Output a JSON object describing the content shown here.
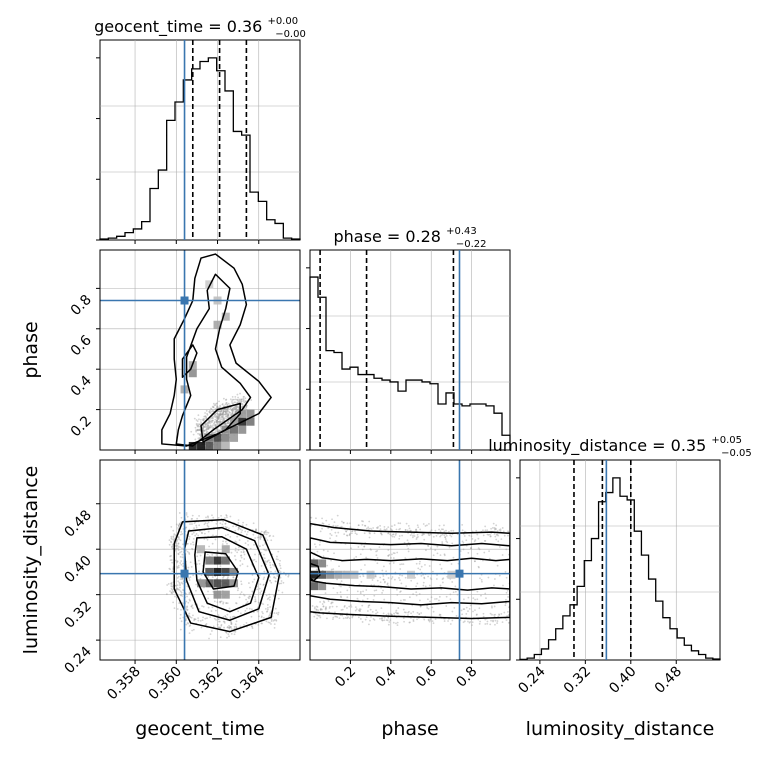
{
  "chart_data": {
    "type": "corner",
    "parameters": [
      "geocent_time",
      "phase",
      "luminosity_distance"
    ],
    "colors": {
      "truth": "#3a76af",
      "hist": "#000000",
      "grid": "#b0b0b0",
      "scatter": "#9e9e9e"
    },
    "geocent_time": {
      "title_main": "geocent_time = 0.36",
      "title_sup": "+0.00",
      "title_sub": "−0.00",
      "xlabel": "geocent_time",
      "range": [
        0.3563,
        0.366
      ],
      "ticks": [
        0.358,
        0.36,
        0.362,
        0.364
      ],
      "tick_labels": [
        "0.358",
        "0.360",
        "0.362",
        "0.364"
      ],
      "truth": 0.3604,
      "quantiles": [
        0.3608,
        0.3621,
        0.3634
      ],
      "hist": [
        0.005,
        0.01,
        0.02,
        0.04,
        0.06,
        0.1,
        0.28,
        0.38,
        0.65,
        0.75,
        0.87,
        0.93,
        0.97,
        0.99,
        0.92,
        0.81,
        0.59,
        0.57,
        0.26,
        0.21,
        0.11,
        0.09,
        0.01,
        0.005
      ]
    },
    "phase": {
      "title_main": "phase = 0.28",
      "title_sup": "+0.43",
      "title_sub": "−0.22",
      "xlabel": "phase",
      "ylabel": "phase",
      "range": [
        0.0,
        0.99
      ],
      "ticks": [
        0.2,
        0.4,
        0.6,
        0.8
      ],
      "tick_labels": [
        "0.2",
        "0.4",
        "0.6",
        "0.8"
      ],
      "truth": 0.74,
      "quantiles": [
        0.05,
        0.28,
        0.71
      ],
      "hist": [
        0.94,
        0.83,
        0.54,
        0.53,
        0.44,
        0.45,
        0.41,
        0.41,
        0.39,
        0.38,
        0.37,
        0.32,
        0.38,
        0.38,
        0.37,
        0.36,
        0.25,
        0.31,
        0.25,
        0.24,
        0.25,
        0.25,
        0.24,
        0.2,
        0.08
      ]
    },
    "luminosity_distance": {
      "title_main": "luminosity_distance = 0.35",
      "title_sup": "+0.05",
      "title_sub": "−0.05",
      "xlabel": "luminosity_distance",
      "ylabel": "luminosity_distance",
      "range": [
        0.205,
        0.557
      ],
      "ticks": [
        0.24,
        0.32,
        0.4,
        0.48
      ],
      "tick_labels": [
        "0.24",
        "0.32",
        "0.40",
        "0.48"
      ],
      "truth": 0.357,
      "quantiles": [
        0.3,
        0.35,
        0.4
      ],
      "hist": [
        0.003,
        0.01,
        0.03,
        0.06,
        0.11,
        0.17,
        0.24,
        0.3,
        0.4,
        0.54,
        0.66,
        0.86,
        0.91,
        0.99,
        0.89,
        0.87,
        0.7,
        0.57,
        0.44,
        0.32,
        0.23,
        0.17,
        0.12,
        0.08,
        0.05,
        0.03,
        0.01,
        0.005
      ]
    },
    "pairs": [
      {
        "x": "geocent_time",
        "y": "phase",
        "contours": [
          [
            [
              0.3608,
              0.02
            ],
            [
              0.3618,
              0.1
            ],
            [
              0.3632,
              0.2
            ],
            [
              0.3636,
              0.26
            ],
            [
              0.3631,
              0.33
            ],
            [
              0.3622,
              0.41
            ],
            [
              0.3619,
              0.5
            ],
            [
              0.3621,
              0.6
            ],
            [
              0.3624,
              0.7
            ],
            [
              0.3626,
              0.8
            ],
            [
              0.3619,
              0.87
            ],
            [
              0.3615,
              0.79
            ],
            [
              0.3616,
              0.7
            ],
            [
              0.361,
              0.6
            ],
            [
              0.3605,
              0.46
            ],
            [
              0.3605,
              0.35
            ],
            [
              0.3607,
              0.27
            ],
            [
              0.3603,
              0.17
            ],
            [
              0.3601,
              0.1
            ],
            [
              0.36,
              0.03
            ]
          ],
          [
            [
              0.3605,
              0.02
            ],
            [
              0.362,
              0.08
            ],
            [
              0.364,
              0.18
            ],
            [
              0.3646,
              0.26
            ],
            [
              0.364,
              0.34
            ],
            [
              0.3629,
              0.43
            ],
            [
              0.3626,
              0.52
            ],
            [
              0.3631,
              0.62
            ],
            [
              0.3634,
              0.72
            ],
            [
              0.3632,
              0.82
            ],
            [
              0.3628,
              0.9
            ],
            [
              0.3619,
              0.97
            ],
            [
              0.3612,
              0.95
            ],
            [
              0.3609,
              0.85
            ],
            [
              0.3608,
              0.74
            ],
            [
              0.3604,
              0.65
            ],
            [
              0.3599,
              0.55
            ],
            [
              0.3599,
              0.45
            ],
            [
              0.36,
              0.35
            ],
            [
              0.3599,
              0.27
            ],
            [
              0.3597,
              0.18
            ],
            [
              0.3593,
              0.1
            ],
            [
              0.3593,
              0.03
            ]
          ],
          [
            [
              0.3613,
              0.04
            ],
            [
              0.3624,
              0.1
            ],
            [
              0.3631,
              0.18
            ],
            [
              0.3631,
              0.23
            ],
            [
              0.362,
              0.2
            ],
            [
              0.3612,
              0.12
            ]
          ],
          [
            [
              0.3603,
              0.36
            ],
            [
              0.3607,
              0.4
            ],
            [
              0.361,
              0.48
            ],
            [
              0.3608,
              0.52
            ],
            [
              0.3603,
              0.45
            ]
          ]
        ],
        "density": [
          [
            0.3608,
            0.02,
            0.9
          ],
          [
            0.3612,
            0.02,
            0.95
          ],
          [
            0.3616,
            0.02,
            0.7
          ],
          [
            0.362,
            0.02,
            0.5
          ],
          [
            0.3624,
            0.02,
            0.3
          ],
          [
            0.3616,
            0.06,
            0.55
          ],
          [
            0.362,
            0.06,
            0.75
          ],
          [
            0.3624,
            0.06,
            0.5
          ],
          [
            0.3628,
            0.06,
            0.4
          ],
          [
            0.3624,
            0.1,
            0.45
          ],
          [
            0.3628,
            0.1,
            0.6
          ],
          [
            0.3632,
            0.1,
            0.45
          ],
          [
            0.3628,
            0.14,
            0.4
          ],
          [
            0.3632,
            0.14,
            0.85
          ],
          [
            0.3636,
            0.14,
            0.55
          ],
          [
            0.3632,
            0.18,
            0.4
          ],
          [
            0.3636,
            0.18,
            0.45
          ],
          [
            0.3604,
            0.3,
            0.35
          ],
          [
            0.3608,
            0.38,
            0.45
          ],
          [
            0.3608,
            0.42,
            0.35
          ],
          [
            0.362,
            0.62,
            0.35
          ],
          [
            0.3624,
            0.66,
            0.3
          ],
          [
            0.362,
            0.74,
            0.25
          ],
          [
            0.3616,
            0.82,
            0.2
          ]
        ],
        "truth": [
          0.3604,
          0.74
        ]
      },
      {
        "x": "geocent_time",
        "y": "luminosity_distance",
        "contours": [
          [
            [
              0.361,
              0.42
            ],
            [
              0.3622,
              0.422
            ],
            [
              0.3634,
              0.4
            ],
            [
              0.364,
              0.35
            ],
            [
              0.3636,
              0.305
            ],
            [
              0.3626,
              0.29
            ],
            [
              0.3615,
              0.305
            ],
            [
              0.361,
              0.345
            ],
            [
              0.3609,
              0.39
            ]
          ],
          [
            [
              0.3606,
              0.432
            ],
            [
              0.3622,
              0.438
            ],
            [
              0.3638,
              0.415
            ],
            [
              0.3645,
              0.355
            ],
            [
              0.364,
              0.295
            ],
            [
              0.3626,
              0.275
            ],
            [
              0.3611,
              0.29
            ],
            [
              0.3605,
              0.345
            ],
            [
              0.3604,
              0.4
            ]
          ],
          [
            [
              0.3603,
              0.448
            ],
            [
              0.3623,
              0.452
            ],
            [
              0.3642,
              0.425
            ],
            [
              0.365,
              0.355
            ],
            [
              0.3646,
              0.28
            ],
            [
              0.3626,
              0.255
            ],
            [
              0.3607,
              0.27
            ],
            [
              0.3599,
              0.33
            ],
            [
              0.3599,
              0.41
            ]
          ],
          [
            [
              0.3614,
              0.395
            ],
            [
              0.3624,
              0.392
            ],
            [
              0.363,
              0.36
            ],
            [
              0.3628,
              0.335
            ],
            [
              0.3618,
              0.33
            ],
            [
              0.3613,
              0.36
            ]
          ]
        ],
        "density": [
          [
            0.3616,
            0.38,
            0.55
          ],
          [
            0.362,
            0.38,
            0.85
          ],
          [
            0.3624,
            0.38,
            0.6
          ],
          [
            0.3616,
            0.36,
            0.7
          ],
          [
            0.362,
            0.36,
            0.95
          ],
          [
            0.3624,
            0.36,
            0.8
          ],
          [
            0.3628,
            0.36,
            0.5
          ],
          [
            0.3612,
            0.34,
            0.45
          ],
          [
            0.3616,
            0.34,
            0.65
          ],
          [
            0.362,
            0.34,
            0.75
          ],
          [
            0.3624,
            0.34,
            0.7
          ],
          [
            0.3628,
            0.34,
            0.45
          ],
          [
            0.362,
            0.32,
            0.45
          ],
          [
            0.3624,
            0.32,
            0.4
          ],
          [
            0.3612,
            0.4,
            0.3
          ],
          [
            0.3624,
            0.4,
            0.35
          ]
        ],
        "truth": [
          0.3604,
          0.357
        ]
      },
      {
        "x": "phase",
        "y": "luminosity_distance",
        "contours": [
          [
            [
              0.0,
              0.395
            ],
            [
              0.06,
              0.385
            ],
            [
              0.16,
              0.38
            ],
            [
              0.28,
              0.382
            ],
            [
              0.4,
              0.38
            ],
            [
              0.55,
              0.383
            ],
            [
              0.68,
              0.38
            ],
            [
              0.8,
              0.384
            ],
            [
              0.92,
              0.38
            ],
            [
              0.99,
              0.382
            ],
            [
              0.99,
              0.33
            ],
            [
              0.9,
              0.332
            ],
            [
              0.78,
              0.328
            ],
            [
              0.65,
              0.332
            ],
            [
              0.5,
              0.33
            ],
            [
              0.36,
              0.334
            ],
            [
              0.22,
              0.336
            ],
            [
              0.08,
              0.34
            ],
            [
              0.0,
              0.345
            ]
          ],
          [
            [
              0.0,
              0.42
            ],
            [
              0.1,
              0.412
            ],
            [
              0.25,
              0.41
            ],
            [
              0.4,
              0.408
            ],
            [
              0.55,
              0.41
            ],
            [
              0.7,
              0.406
            ],
            [
              0.85,
              0.41
            ],
            [
              0.99,
              0.406
            ],
            [
              0.99,
              0.308
            ],
            [
              0.85,
              0.304
            ],
            [
              0.7,
              0.306
            ],
            [
              0.55,
              0.302
            ],
            [
              0.4,
              0.306
            ],
            [
              0.25,
              0.308
            ],
            [
              0.1,
              0.312
            ],
            [
              0.0,
              0.318
            ]
          ],
          [
            [
              0.0,
              0.445
            ],
            [
              0.12,
              0.438
            ],
            [
              0.3,
              0.432
            ],
            [
              0.5,
              0.43
            ],
            [
              0.7,
              0.428
            ],
            [
              0.9,
              0.43
            ],
            [
              0.99,
              0.428
            ],
            [
              0.99,
              0.28
            ],
            [
              0.8,
              0.278
            ],
            [
              0.6,
              0.28
            ],
            [
              0.4,
              0.282
            ],
            [
              0.2,
              0.285
            ],
            [
              0.05,
              0.288
            ],
            [
              0.0,
              0.29
            ]
          ],
          [
            [
              0.0,
              0.375
            ],
            [
              0.04,
              0.37
            ],
            [
              0.05,
              0.355
            ],
            [
              0.02,
              0.345
            ],
            [
              0.0,
              0.348
            ]
          ]
        ],
        "density": [
          [
            0.02,
            0.355,
            0.95
          ],
          [
            0.02,
            0.375,
            0.7
          ],
          [
            0.02,
            0.335,
            0.65
          ],
          [
            0.06,
            0.355,
            0.7
          ],
          [
            0.06,
            0.375,
            0.5
          ],
          [
            0.06,
            0.335,
            0.45
          ],
          [
            0.1,
            0.355,
            0.45
          ],
          [
            0.14,
            0.355,
            0.35
          ],
          [
            0.18,
            0.355,
            0.3
          ],
          [
            0.22,
            0.355,
            0.25
          ],
          [
            0.3,
            0.355,
            0.22
          ],
          [
            0.5,
            0.355,
            0.2
          ],
          [
            0.7,
            0.355,
            0.2
          ]
        ],
        "truth": [
          0.74,
          0.357
        ]
      }
    ]
  }
}
